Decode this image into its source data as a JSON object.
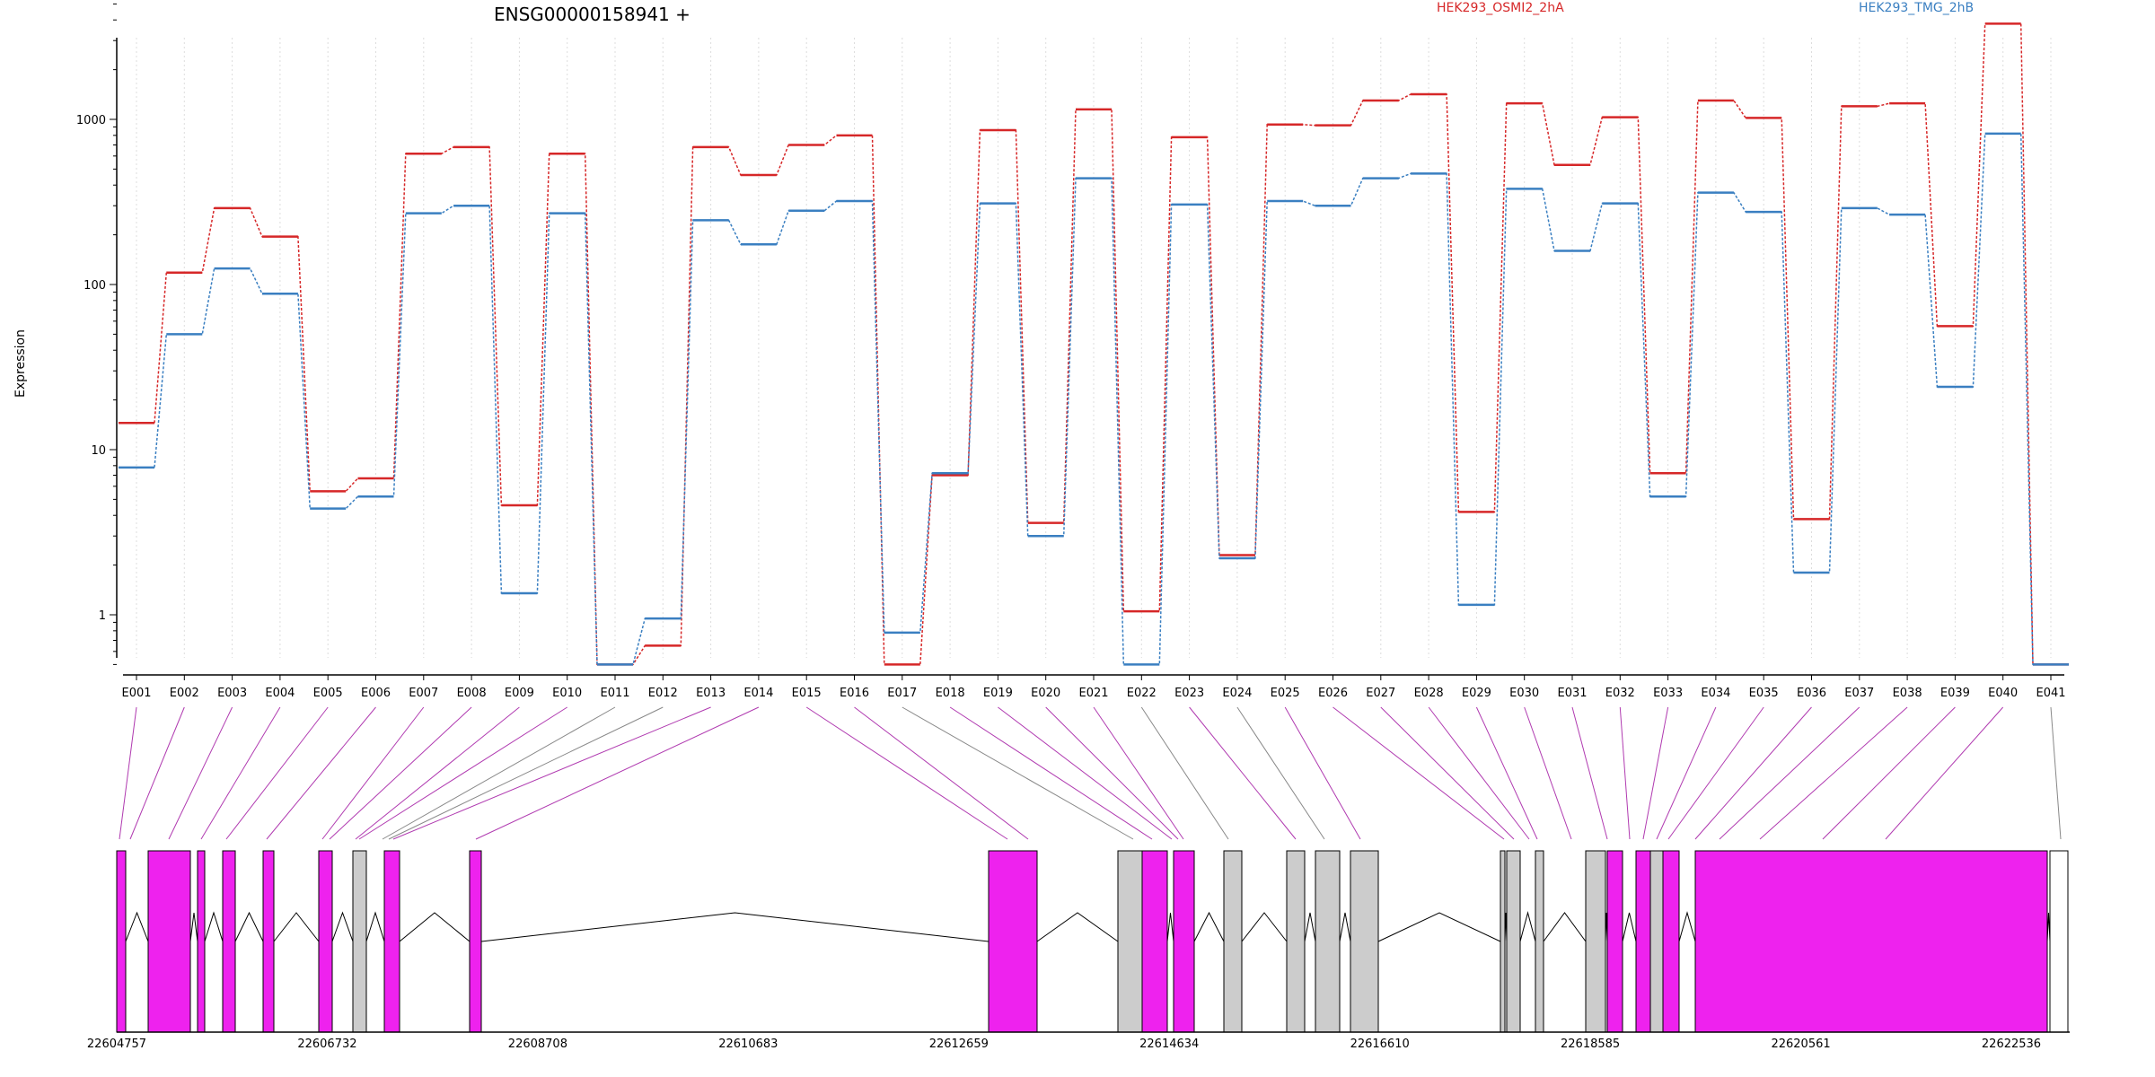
{
  "chart_data": {
    "type": "line",
    "title": "ENSG00000158941 +",
    "ylabel": "Expression",
    "xlabel": "",
    "yscale": "log",
    "ylim": [
      0.5,
      5000
    ],
    "yticks": [
      1,
      10,
      100,
      1000
    ],
    "ytick_labels": [
      "1",
      "10",
      "100",
      "1000"
    ],
    "grid": "vertical dotted lines at exon centers",
    "legend_placement": "top",
    "categories": [
      "E001",
      "E002",
      "E003",
      "E004",
      "E005",
      "E006",
      "E007",
      "E008",
      "E009",
      "E010",
      "E011",
      "E012",
      "E013",
      "E014",
      "E015",
      "E016",
      "E017",
      "E018",
      "E019",
      "E020",
      "E021",
      "E022",
      "E023",
      "E024",
      "E025",
      "E026",
      "E027",
      "E028",
      "E029",
      "E030",
      "E031",
      "E032",
      "E033",
      "E034",
      "E035",
      "E036",
      "E037",
      "E038",
      "E039",
      "E040",
      "E041"
    ],
    "series": [
      {
        "name": "HEK293_OSMI2_2hA",
        "color": "#d62728",
        "values": [
          14.5,
          118,
          290,
          195,
          5.6,
          6.7,
          620,
          680,
          4.6,
          620,
          0.5,
          0.65,
          680,
          460,
          700,
          800,
          0.5,
          7.0,
          860,
          3.6,
          1150,
          1.05,
          780,
          2.3,
          930,
          920,
          1300,
          1420,
          4.2,
          1250,
          530,
          1030,
          7.2,
          1300,
          1020,
          3.8,
          1200,
          1250,
          56,
          3800,
          0.5
        ]
      },
      {
        "name": "HEK293_TMG_2hB",
        "color": "#3a7fc1",
        "values": [
          7.8,
          50,
          125,
          88,
          4.4,
          5.2,
          270,
          300,
          1.35,
          270,
          0.5,
          0.95,
          245,
          175,
          280,
          320,
          0.78,
          7.2,
          310,
          3.0,
          440,
          0.5,
          305,
          2.2,
          320,
          300,
          440,
          470,
          1.15,
          380,
          160,
          310,
          5.2,
          360,
          275,
          1.8,
          290,
          265,
          24,
          820,
          0.5
        ]
      }
    ],
    "gene_model": {
      "coordinate_ticks": [
        "22604757",
        "22606732",
        "22608708",
        "22610683",
        "22612659",
        "22614634",
        "22616610",
        "22618585",
        "22620561",
        "22622536"
      ],
      "exon_colors": {
        "significant": "#ee22ee",
        "not_significant": "#cccccc",
        "unexpressed": "#ffffff"
      }
    }
  }
}
